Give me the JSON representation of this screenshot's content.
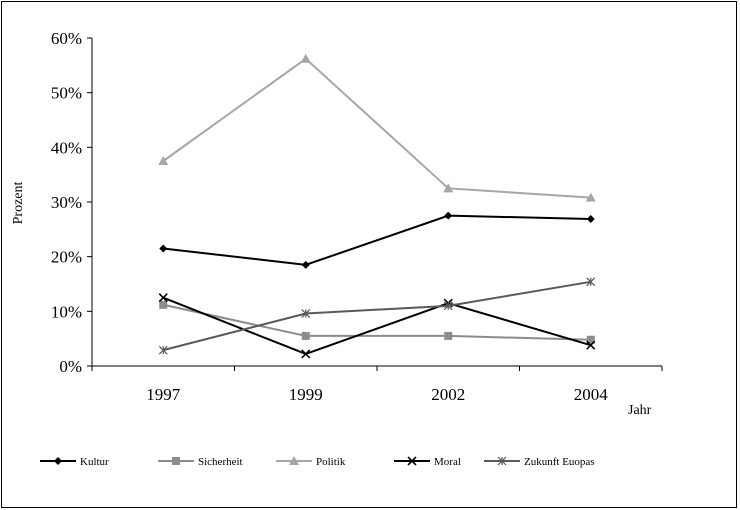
{
  "chart_data": {
    "type": "line",
    "title": "",
    "xlabel": "Jahr",
    "ylabel": "Prozent",
    "categories": [
      "1997",
      "1999",
      "2002",
      "2004"
    ],
    "ylim": [
      0,
      60
    ],
    "yticks": [
      0,
      10,
      20,
      30,
      40,
      50,
      60
    ],
    "ytick_labels": [
      "0%",
      "10%",
      "20%",
      "30%",
      "40%",
      "50%",
      "60%"
    ],
    "grid": false,
    "legend_position": "bottom",
    "series": [
      {
        "name": "Kultur",
        "values": [
          21.5,
          18.5,
          27.5,
          26.9
        ],
        "color": "#000000",
        "marker": "diamond"
      },
      {
        "name": "Sicherheit",
        "values": [
          11.2,
          5.5,
          5.5,
          4.8
        ],
        "color": "#8c8c8c",
        "marker": "square"
      },
      {
        "name": "Politik",
        "values": [
          37.5,
          56.2,
          32.5,
          30.8
        ],
        "color": "#a6a6a6",
        "marker": "triangle"
      },
      {
        "name": "Moral",
        "values": [
          12.5,
          2.2,
          11.5,
          3.8
        ],
        "color": "#000000",
        "marker": "x"
      },
      {
        "name": "Zukunft Euopas",
        "values": [
          2.9,
          9.6,
          11.0,
          15.4
        ],
        "color": "#595959",
        "marker": "star"
      }
    ]
  }
}
